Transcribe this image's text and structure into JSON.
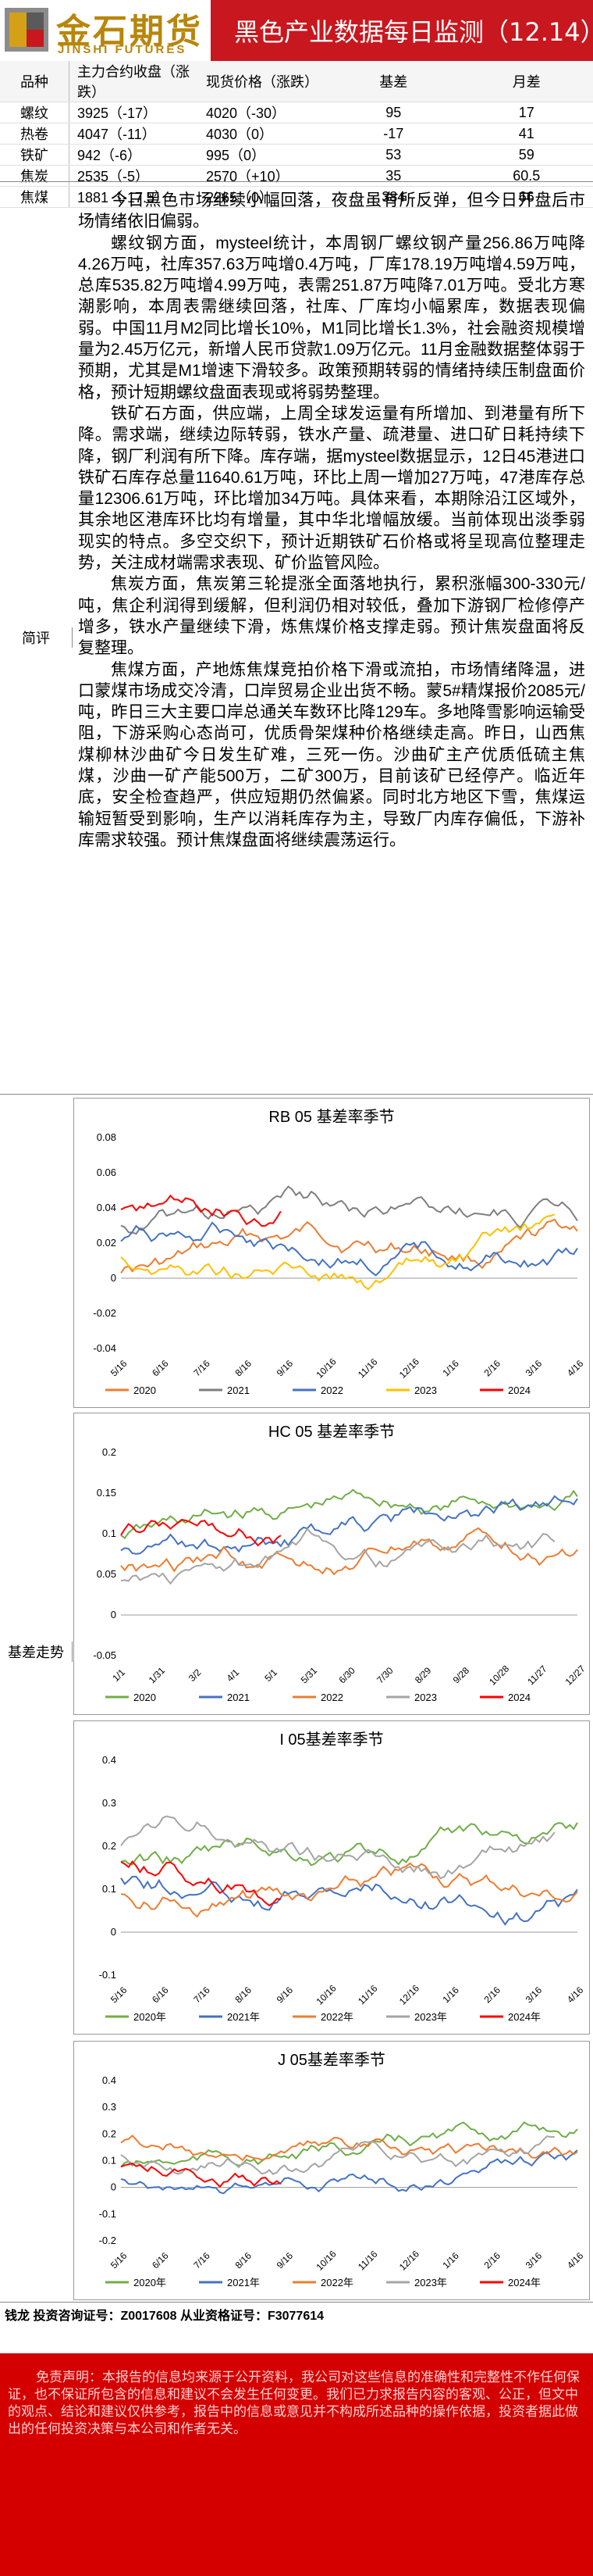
{
  "header": {
    "logo_cn": "金石期货",
    "logo_en": "JINSHI FUTURES",
    "title": "黑色产业数据每日监测（12.14）"
  },
  "table": {
    "headers": [
      "品种",
      "主力合约收盘（涨跌）",
      "现货价格（涨跌）",
      "基差",
      "月差"
    ],
    "rows": [
      [
        "螺纹",
        "3925（-17）",
        "4020（-30）",
        "95",
        "17"
      ],
      [
        "热卷",
        "4047（-11）",
        "4030（0）",
        "-17",
        "41"
      ],
      [
        "铁矿",
        "942（-6）",
        "995（0）",
        "53",
        "59"
      ],
      [
        "焦炭",
        "2535（-5）",
        "2570（+10）",
        "35",
        "60.5"
      ],
      [
        "焦煤",
        "1881（-17.5）",
        "2265（0）",
        "384",
        "66"
      ]
    ]
  },
  "comment": {
    "label": "简评",
    "paragraphs": [
      "今日黑色市场继续小幅回落，夜盘虽有所反弹，但今日开盘后市场情绪依旧偏弱。",
      "螺纹钢方面，mysteel统计，本周钢厂螺纹钢产量256.86万吨降4.26万吨，社库357.63万吨增0.4万吨，厂库178.19万吨增4.59万吨，总库535.82万吨增4.99万吨，表需251.87万吨降7.01万吨。受北方寒潮影响，本周表需继续回落，社库、厂库均小幅累库，数据表现偏弱。中国11月M2同比增长10%，M1同比增长1.3%，社会融资规模增量为2.45万亿元，新增人民币贷款1.09万亿元。11月金融数据整体弱于预期，尤其是M1增速下滑较多。政策预期转弱的情绪持续压制盘面价格，预计短期螺纹盘面表现或将弱势整理。",
      "铁矿石方面，供应端，上周全球发运量有所增加、到港量有所下降。需求端，继续边际转弱，铁水产量、疏港量、进口矿日耗持续下降，钢厂利润有所下降。库存端，据mysteel数据显示，12日45港进口铁矿石库存总量11640.61万吨，环比上周一增加27万吨，47港库存总量12306.61万吨，环比增加34万吨。具体来看，本期除沿江区域外，其余地区港库环比均有增量，其中华北增幅放缓。当前体现出淡季弱现实的特点。多空交织下，预计近期铁矿石价格或将呈现高位整理走势，关注成材端需求表现、矿价监管风险。",
      "焦炭方面，焦炭第三轮提涨全面落地执行，累积涨幅300-330元/吨，焦企利润得到缓解，但利润仍相对较低，叠加下游钢厂检修停产增多，铁水产量继续下滑，炼焦煤价格支撑走弱。预计焦炭盘面将反复整理。",
      "焦煤方面，产地炼焦煤竞拍价格下滑或流拍，市场情绪降温，进口蒙煤市场成交冷清，口岸贸易企业出货不畅。蒙5#精煤报价2085元/吨，昨日三大主要口岸总通关车数环比降129车。多地降雪影响运输受阻，下游采购心态尚可，优质骨架煤种价格继续走高。昨日，山西焦煤柳林沙曲矿今日发生矿难，三死一伤。沙曲矿主产优质低硫主焦煤，沙曲一矿产能500万，二矿300万，目前该矿已经停产。临近年底，安全检查趋严，供应短期仍然偏紧。同时北方地区下雪，焦煤运输短暂受到影响，生产以消耗库存为主，导致厂内库存偏低，下游补库需求较强。预计焦煤盘面将继续震荡运行。"
    ]
  },
  "basis": {
    "label": "基差走势",
    "charts": [
      {
        "title": "RB 05 基差率季节",
        "y_ticks": [
          "0.08",
          "0.06",
          "0.04",
          "0.02",
          "0",
          "-0.02",
          "-0.04"
        ],
        "x_ticks": [
          "5/16",
          "6/16",
          "7/16",
          "8/16",
          "9/16",
          "10/16",
          "11/16",
          "12/16",
          "1/16",
          "2/16",
          "3/16",
          "4/16"
        ],
        "legend": [
          "2020",
          "2021",
          "2022",
          "2023",
          "2024"
        ]
      },
      {
        "title": "HC 05 基差率季节",
        "y_ticks": [
          "0.2",
          "0.15",
          "0.1",
          "0.05",
          "0",
          "-0.05"
        ],
        "x_ticks": [
          "1/1",
          "1/31",
          "3/2",
          "4/1",
          "5/1",
          "5/31",
          "6/30",
          "7/30",
          "8/29",
          "9/28",
          "10/28",
          "11/27",
          "12/27"
        ],
        "legend": [
          "2020",
          "2021",
          "2022",
          "2023",
          "2024"
        ]
      },
      {
        "title": "I 05基差率季节",
        "y_ticks": [
          "0.4",
          "0.3",
          "0.2",
          "0.1",
          "0",
          "-0.1"
        ],
        "x_ticks": [
          "5/16",
          "6/16",
          "7/16",
          "8/16",
          "9/16",
          "10/16",
          "11/16",
          "12/16",
          "1/16",
          "2/16",
          "3/16",
          "4/16"
        ],
        "legend": [
          "2020年",
          "2021年",
          "2022年",
          "2023年",
          "2024年"
        ]
      },
      {
        "title": "J 05基差率季节",
        "y_ticks": [
          "0.4",
          "0.3",
          "0.2",
          "0.1",
          "0",
          "-0.1",
          "-0.2"
        ],
        "x_ticks": [
          "5/16",
          "6/16",
          "7/16",
          "8/16",
          "9/16",
          "10/16",
          "11/16",
          "12/16",
          "1/16",
          "2/16",
          "3/16",
          "4/16"
        ],
        "legend": [
          "2020年",
          "2021年",
          "2022年",
          "2023年",
          "2024年"
        ]
      }
    ]
  },
  "series_colors": [
    "#70ad47",
    "#4472c4",
    "#ed7d31",
    "#a5a5a5",
    "#ff0000"
  ],
  "series_colors_rb": [
    "#ed7d31",
    "#7f7f7f",
    "#4472c4",
    "#ffc000",
    "#ff0000"
  ],
  "author": "钱龙 投资咨询证号：Z0017608 从业资格证号：F3077614",
  "disclaimer": "免责声明：本报告的信息均来源于公开资料，我公司对这些信息的准确性和完整性不作任何保证，也不保证所包含的信息和建议不会发生任何变更。我们已力求报告内容的客观、公正，但文中的观点、结论和建议仅供参考，报告中的信息或意见并不构成所述品种的操作依据，投资者据此做出的任何投资决策与本公司和作者无关。"
}
